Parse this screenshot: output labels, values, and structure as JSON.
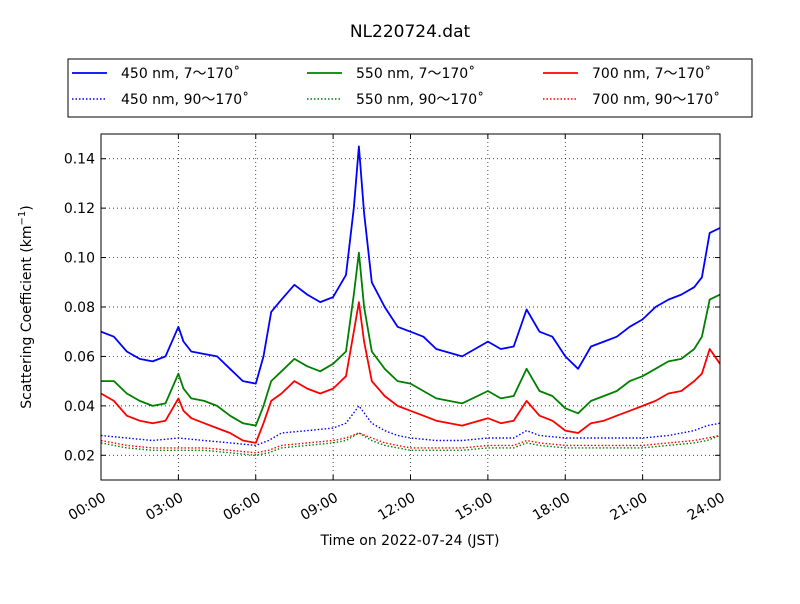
{
  "chart_data": {
    "type": "line",
    "title": "NL220724.dat",
    "xlabel": "Time on 2022-07-24 (JST)",
    "ylabel_main": "Scattering Coefficient (km",
    "ylabel_sup": "−1",
    "ylabel_tail": ")",
    "xlim": [
      0,
      24
    ],
    "ylim": [
      0.01,
      0.15
    ],
    "x_ticks": [
      0,
      3,
      6,
      9,
      12,
      15,
      18,
      21,
      24
    ],
    "x_tick_labels": [
      "00:00",
      "03:00",
      "06:00",
      "09:00",
      "12:00",
      "15:00",
      "18:00",
      "21:00",
      "24:00"
    ],
    "y_ticks": [
      0.02,
      0.04,
      0.06,
      0.08,
      0.1,
      0.12,
      0.14
    ],
    "y_tick_labels": [
      "0.02",
      "0.04",
      "0.06",
      "0.08",
      "0.10",
      "0.12",
      "0.14"
    ],
    "grid": true,
    "legend_placement": "top-center",
    "series": [
      {
        "name": "450 nm, 7～170˚",
        "color": "#0000ff",
        "style": "solid",
        "x": [
          0,
          0.5,
          1,
          1.5,
          2,
          2.5,
          3,
          3.2,
          3.5,
          4,
          4.5,
          5,
          5.5,
          6,
          6.3,
          6.6,
          7,
          7.5,
          8,
          8.5,
          9,
          9.5,
          9.8,
          10,
          10.2,
          10.5,
          11,
          11.5,
          12,
          12.5,
          13,
          14,
          15,
          15.5,
          16,
          16.5,
          17,
          17.5,
          18,
          18.5,
          19,
          19.5,
          20,
          20.5,
          21,
          21.5,
          22,
          22.5,
          23,
          23.3,
          23.6,
          24
        ],
        "y": [
          0.07,
          0.068,
          0.062,
          0.059,
          0.058,
          0.06,
          0.072,
          0.066,
          0.062,
          0.061,
          0.06,
          0.055,
          0.05,
          0.049,
          0.06,
          0.078,
          0.083,
          0.089,
          0.085,
          0.082,
          0.084,
          0.093,
          0.12,
          0.145,
          0.118,
          0.09,
          0.08,
          0.072,
          0.07,
          0.068,
          0.063,
          0.06,
          0.066,
          0.063,
          0.064,
          0.079,
          0.07,
          0.068,
          0.06,
          0.055,
          0.064,
          0.066,
          0.068,
          0.072,
          0.075,
          0.08,
          0.083,
          0.085,
          0.088,
          0.092,
          0.11,
          0.112
        ]
      },
      {
        "name": "550 nm, 7～170˚",
        "color": "#008000",
        "style": "solid",
        "x": [
          0,
          0.5,
          1,
          1.5,
          2,
          2.5,
          3,
          3.2,
          3.5,
          4,
          4.5,
          5,
          5.5,
          6,
          6.3,
          6.6,
          7,
          7.5,
          8,
          8.5,
          9,
          9.5,
          9.8,
          10,
          10.2,
          10.5,
          11,
          11.5,
          12,
          12.5,
          13,
          14,
          15,
          15.5,
          16,
          16.5,
          17,
          17.5,
          18,
          18.5,
          19,
          19.5,
          20,
          20.5,
          21,
          21.5,
          22,
          22.5,
          23,
          23.3,
          23.6,
          24
        ],
        "y": [
          0.05,
          0.05,
          0.045,
          0.042,
          0.04,
          0.041,
          0.053,
          0.047,
          0.043,
          0.042,
          0.04,
          0.036,
          0.033,
          0.032,
          0.04,
          0.05,
          0.054,
          0.059,
          0.056,
          0.054,
          0.057,
          0.062,
          0.085,
          0.102,
          0.08,
          0.062,
          0.055,
          0.05,
          0.049,
          0.046,
          0.043,
          0.041,
          0.046,
          0.043,
          0.044,
          0.055,
          0.046,
          0.044,
          0.039,
          0.037,
          0.042,
          0.044,
          0.046,
          0.05,
          0.052,
          0.055,
          0.058,
          0.059,
          0.063,
          0.068,
          0.083,
          0.085
        ]
      },
      {
        "name": "700 nm, 7～170˚",
        "color": "#ff0000",
        "style": "solid",
        "x": [
          0,
          0.5,
          1,
          1.5,
          2,
          2.5,
          3,
          3.2,
          3.5,
          4,
          4.5,
          5,
          5.5,
          6,
          6.3,
          6.6,
          7,
          7.5,
          8,
          8.5,
          9,
          9.5,
          9.8,
          10,
          10.2,
          10.5,
          11,
          11.5,
          12,
          12.5,
          13,
          14,
          15,
          15.5,
          16,
          16.5,
          17,
          17.5,
          18,
          18.5,
          19,
          19.5,
          20,
          20.5,
          21,
          21.5,
          22,
          22.5,
          23,
          23.3,
          23.6,
          24
        ],
        "y": [
          0.045,
          0.042,
          0.036,
          0.034,
          0.033,
          0.034,
          0.043,
          0.038,
          0.035,
          0.033,
          0.031,
          0.029,
          0.026,
          0.025,
          0.033,
          0.042,
          0.045,
          0.05,
          0.047,
          0.045,
          0.047,
          0.052,
          0.07,
          0.082,
          0.066,
          0.05,
          0.044,
          0.04,
          0.038,
          0.036,
          0.034,
          0.032,
          0.035,
          0.033,
          0.034,
          0.042,
          0.036,
          0.034,
          0.03,
          0.029,
          0.033,
          0.034,
          0.036,
          0.038,
          0.04,
          0.042,
          0.045,
          0.046,
          0.05,
          0.053,
          0.063,
          0.057
        ]
      },
      {
        "name": "450 nm, 90～170˚",
        "color": "#0000ff",
        "style": "dotted",
        "x": [
          0,
          1,
          2,
          3,
          4,
          5,
          6,
          6.5,
          7,
          8,
          9,
          9.5,
          10,
          10.5,
          11,
          11.5,
          12,
          13,
          14,
          15,
          16,
          16.5,
          17,
          18,
          19,
          20,
          21,
          22,
          23,
          23.5,
          24
        ],
        "y": [
          0.028,
          0.027,
          0.026,
          0.027,
          0.026,
          0.025,
          0.024,
          0.026,
          0.029,
          0.03,
          0.031,
          0.033,
          0.04,
          0.033,
          0.03,
          0.028,
          0.027,
          0.026,
          0.026,
          0.027,
          0.027,
          0.03,
          0.028,
          0.027,
          0.027,
          0.027,
          0.027,
          0.028,
          0.03,
          0.032,
          0.033
        ]
      },
      {
        "name": "550 nm, 90～170˚",
        "color": "#008000",
        "style": "dotted",
        "x": [
          0,
          1,
          2,
          3,
          4,
          5,
          6,
          6.5,
          7,
          8,
          9,
          9.5,
          10,
          10.5,
          11,
          11.5,
          12,
          13,
          14,
          15,
          16,
          16.5,
          17,
          18,
          19,
          20,
          21,
          22,
          23,
          23.5,
          24
        ],
        "y": [
          0.025,
          0.023,
          0.022,
          0.022,
          0.022,
          0.021,
          0.02,
          0.021,
          0.023,
          0.024,
          0.025,
          0.026,
          0.029,
          0.026,
          0.024,
          0.023,
          0.022,
          0.022,
          0.022,
          0.023,
          0.023,
          0.025,
          0.024,
          0.023,
          0.023,
          0.023,
          0.023,
          0.024,
          0.025,
          0.026,
          0.028
        ]
      },
      {
        "name": "700 nm, 90～170˚",
        "color": "#ff0000",
        "style": "dotted",
        "x": [
          0,
          1,
          2,
          3,
          4,
          5,
          6,
          6.5,
          7,
          8,
          9,
          9.5,
          10,
          10.5,
          11,
          11.5,
          12,
          13,
          14,
          15,
          16,
          16.5,
          17,
          18,
          19,
          20,
          21,
          22,
          23,
          23.5,
          24
        ],
        "y": [
          0.026,
          0.024,
          0.023,
          0.023,
          0.023,
          0.022,
          0.021,
          0.022,
          0.024,
          0.025,
          0.026,
          0.027,
          0.029,
          0.027,
          0.025,
          0.024,
          0.023,
          0.023,
          0.023,
          0.024,
          0.024,
          0.026,
          0.025,
          0.024,
          0.024,
          0.024,
          0.024,
          0.025,
          0.026,
          0.027,
          0.028
        ]
      }
    ]
  }
}
